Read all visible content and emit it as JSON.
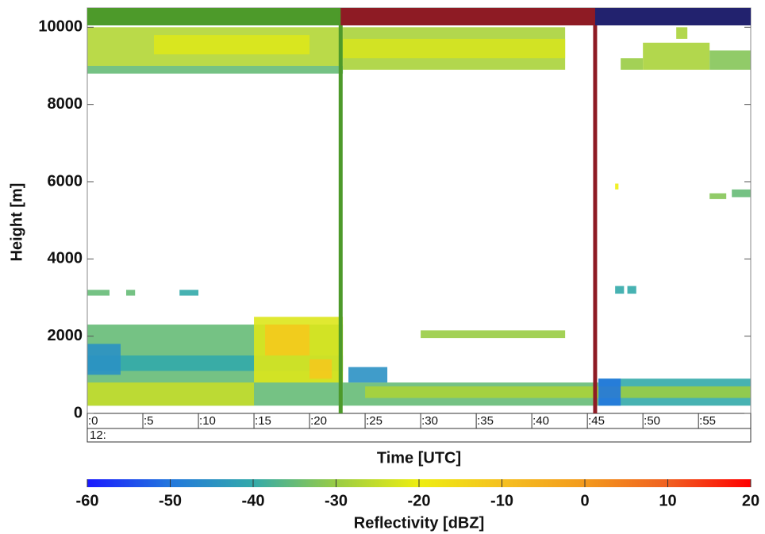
{
  "chart_data": {
    "type": "heatmap",
    "x_label": "Time [UTC]",
    "y_label": "Height [m]",
    "x_prefix": "12:",
    "xlim": [
      0,
      59.7
    ],
    "ylim": [
      0,
      10500
    ],
    "xticks": [
      {
        "value": 0,
        "label": ":0"
      },
      {
        "value": 5,
        "label": ":5"
      },
      {
        "value": 10,
        "label": ":10"
      },
      {
        "value": 15,
        "label": ":15"
      },
      {
        "value": 20,
        "label": ":20"
      },
      {
        "value": 25,
        "label": ":25"
      },
      {
        "value": 30,
        "label": ":30"
      },
      {
        "value": 35,
        "label": ":35"
      },
      {
        "value": 40,
        "label": ":40"
      },
      {
        "value": 45,
        "label": ":45"
      },
      {
        "value": 50,
        "label": ":50"
      },
      {
        "value": 55,
        "label": ":55"
      }
    ],
    "yticks": [
      0,
      2000,
      4000,
      6000,
      8000,
      10000
    ],
    "segments": [
      {
        "start": 0,
        "end": 22.8,
        "color": "#4d9a2a"
      },
      {
        "start": 22.8,
        "end": 45.7,
        "color": "#8e1b24"
      },
      {
        "start": 45.7,
        "end": 59.7,
        "color": "#22226e"
      }
    ],
    "colorbar_label": "Reflectivity [dBZ]",
    "clim": [
      -60,
      20
    ],
    "colorbar_ticks": [
      -60,
      -50,
      -40,
      -30,
      -20,
      -10,
      0,
      10,
      20
    ],
    "colormap": [
      "#1a1aff",
      "#2277dd",
      "#33aaaa",
      "#99cc44",
      "#eeee11",
      "#f5c020",
      "#f39a1e",
      "#f06020",
      "#ff0000"
    ],
    "cells": [
      {
        "t0": 0,
        "t1": 23,
        "h0": 8800,
        "h1": 9000,
        "value": -35
      },
      {
        "t0": 0,
        "t1": 23,
        "h0": 9000,
        "h1": 10000,
        "value": -27
      },
      {
        "t0": 6,
        "t1": 20,
        "h0": 9300,
        "h1": 9800,
        "value": -22
      },
      {
        "t0": 23,
        "t1": 43,
        "h0": 8900,
        "h1": 10000,
        "value": -28
      },
      {
        "t0": 23,
        "t1": 43,
        "h0": 9200,
        "h1": 9700,
        "value": -23
      },
      {
        "t0": 48,
        "t1": 50,
        "h0": 8900,
        "h1": 9200,
        "value": -30
      },
      {
        "t0": 50,
        "t1": 56,
        "h0": 8900,
        "h1": 9600,
        "value": -28
      },
      {
        "t0": 56,
        "t1": 59.7,
        "h0": 8900,
        "h1": 9400,
        "value": -32
      },
      {
        "t0": 53,
        "t1": 54,
        "h0": 9700,
        "h1": 10000,
        "value": -28
      },
      {
        "t0": 0,
        "t1": 2,
        "h0": 3050,
        "h1": 3200,
        "value": -35
      },
      {
        "t0": 3.5,
        "t1": 4.3,
        "h0": 3050,
        "h1": 3200,
        "value": -35
      },
      {
        "t0": 8.3,
        "t1": 10,
        "h0": 3050,
        "h1": 3200,
        "value": -40
      },
      {
        "t0": 47.5,
        "t1": 48.3,
        "h0": 3100,
        "h1": 3300,
        "value": -40
      },
      {
        "t0": 48.6,
        "t1": 49.4,
        "h0": 3100,
        "h1": 3300,
        "value": -40
      },
      {
        "t0": 56,
        "t1": 57.5,
        "h0": 5550,
        "h1": 5700,
        "value": -32
      },
      {
        "t0": 58,
        "t1": 59.7,
        "h0": 5600,
        "h1": 5800,
        "value": -35
      },
      {
        "t0": 47.5,
        "t1": 47.8,
        "h0": 5800,
        "h1": 5950,
        "value": -20
      },
      {
        "t0": 0,
        "t1": 23,
        "h0": 200,
        "h1": 2300,
        "value": -35
      },
      {
        "t0": 0,
        "t1": 23,
        "h0": 1100,
        "h1": 1500,
        "value": -40
      },
      {
        "t0": 0,
        "t1": 3,
        "h0": 1000,
        "h1": 1800,
        "value": -45
      },
      {
        "t0": 0,
        "t1": 15,
        "h0": 200,
        "h1": 800,
        "value": -25
      },
      {
        "t0": 15,
        "t1": 23,
        "h0": 800,
        "h1": 2500,
        "value": -22
      },
      {
        "t0": 16,
        "t1": 20,
        "h0": 1500,
        "h1": 2300,
        "value": -12
      },
      {
        "t0": 20,
        "t1": 22,
        "h0": 900,
        "h1": 1400,
        "value": -12
      },
      {
        "t0": 23,
        "t1": 46,
        "h0": 200,
        "h1": 800,
        "value": -35
      },
      {
        "t0": 25,
        "t1": 46,
        "h0": 400,
        "h1": 700,
        "value": -28
      },
      {
        "t0": 30,
        "t1": 43,
        "h0": 1950,
        "h1": 2150,
        "value": -30
      },
      {
        "t0": 23.5,
        "t1": 27,
        "h0": 800,
        "h1": 1200,
        "value": -45
      },
      {
        "t0": 46,
        "t1": 59.7,
        "h0": 200,
        "h1": 900,
        "value": -40
      },
      {
        "t0": 46,
        "t1": 59.7,
        "h0": 400,
        "h1": 700,
        "value": -30
      },
      {
        "t0": 46,
        "t1": 48,
        "h0": 200,
        "h1": 900,
        "value": -50
      }
    ]
  }
}
